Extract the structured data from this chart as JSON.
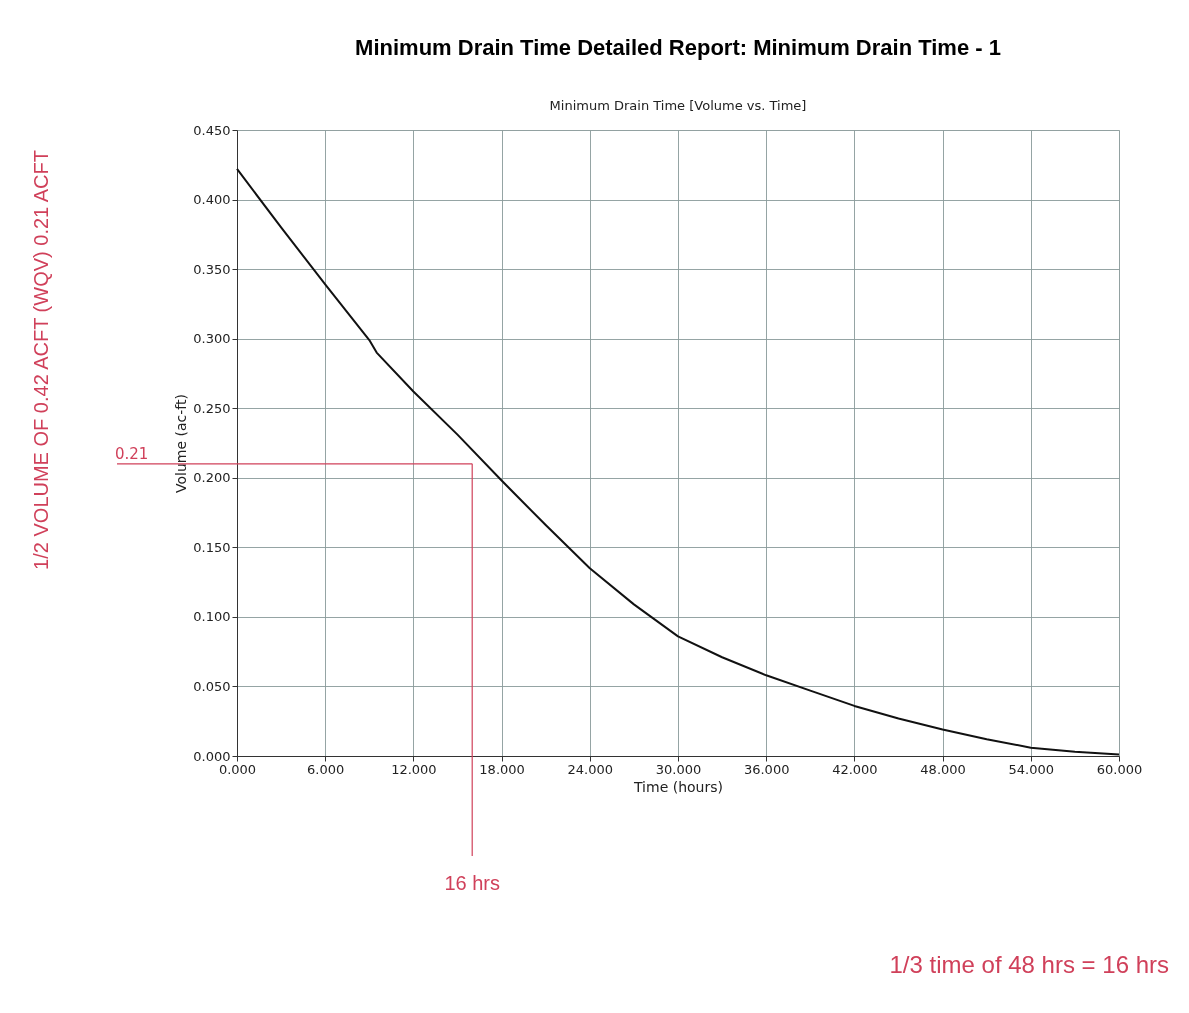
{
  "chart_data": {
    "type": "line",
    "title": "Minimum Drain Time Detailed Report:  Minimum Drain Time - 1",
    "subtitle": "Minimum Drain Time [Volume vs. Time]",
    "xlabel": "Time (hours)",
    "ylabel": "Volume (ac-ft)",
    "x": [
      0,
      3,
      6,
      9,
      9.5,
      12,
      15,
      18,
      21,
      24,
      27,
      30,
      33,
      36,
      39,
      42,
      45,
      48,
      51,
      54,
      57,
      60
    ],
    "series": [
      {
        "color": "#111111",
        "values": [
          0.422,
          0.38,
          0.339,
          0.299,
          0.29,
          0.262,
          0.231,
          0.198,
          0.166,
          0.135,
          0.109,
          0.086,
          0.071,
          0.058,
          0.047,
          0.036,
          0.027,
          0.019,
          0.012,
          0.006,
          0.003,
          0.001
        ]
      }
    ],
    "xlim": [
      0,
      60
    ],
    "ylim": [
      0,
      0.45
    ],
    "xticks": [
      {
        "value": 0,
        "label": "0.000"
      },
      {
        "value": 6,
        "label": "6.000"
      },
      {
        "value": 12,
        "label": "12.000"
      },
      {
        "value": 18,
        "label": "18.000"
      },
      {
        "value": 24,
        "label": "24.000"
      },
      {
        "value": 30,
        "label": "30.000"
      },
      {
        "value": 36,
        "label": "36.000"
      },
      {
        "value": 42,
        "label": "42.000"
      },
      {
        "value": 48,
        "label": "48.000"
      },
      {
        "value": 54,
        "label": "54.000"
      },
      {
        "value": 60,
        "label": "60.000"
      }
    ],
    "yticks": [
      {
        "value": 0,
        "label": "0.000"
      },
      {
        "value": 0.05,
        "label": "0.050"
      },
      {
        "value": 0.1,
        "label": "0.100"
      },
      {
        "value": 0.15,
        "label": "0.150"
      },
      {
        "value": 0.2,
        "label": "0.200"
      },
      {
        "value": 0.25,
        "label": "0.250"
      },
      {
        "value": 0.3,
        "label": "0.300"
      },
      {
        "value": 0.35,
        "label": "0.350"
      },
      {
        "value": 0.4,
        "label": "0.400"
      },
      {
        "value": 0.45,
        "label": "0.450"
      }
    ],
    "grid": true,
    "legend": false,
    "marker": "none",
    "line_style": "solid",
    "ref_lines": [
      {
        "axis": "y",
        "value": 0.21,
        "label": "0.21",
        "color": "#d0405a"
      },
      {
        "axis": "x",
        "value": 16,
        "label": "16 hrs",
        "color": "#d0405a"
      }
    ],
    "annotations": [
      "1/2 VOLUME OF 0.42 ACFT (WQV) 0.21 ACFT",
      "1/3 time of 48 hrs = 16 hrs"
    ]
  }
}
